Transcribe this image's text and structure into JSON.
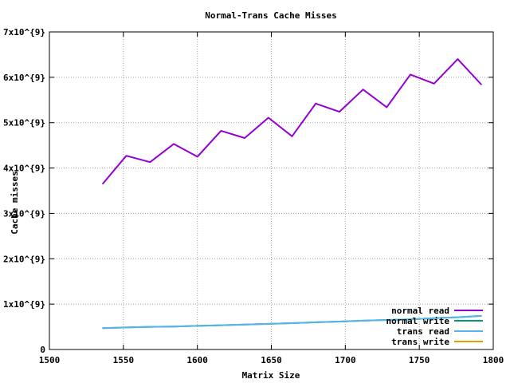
{
  "chart_data": {
    "type": "line",
    "title": "Normal-Trans Cache Misses",
    "xlabel": "Matrix Size",
    "ylabel": "Cache misses",
    "xlim": [
      1500,
      1800
    ],
    "ylim": [
      0,
      7000000000
    ],
    "x_ticks": [
      {
        "value": 1500,
        "label": "1500"
      },
      {
        "value": 1550,
        "label": "1550"
      },
      {
        "value": 1600,
        "label": "1600"
      },
      {
        "value": 1650,
        "label": "1650"
      },
      {
        "value": 1700,
        "label": "1700"
      },
      {
        "value": 1750,
        "label": "1750"
      },
      {
        "value": 1800,
        "label": "1800"
      }
    ],
    "y_ticks": [
      {
        "value": 0,
        "label": "0"
      },
      {
        "value": 1000000000,
        "label": "1x10^{9}"
      },
      {
        "value": 2000000000,
        "label": "2x10^{9}"
      },
      {
        "value": 3000000000,
        "label": "3x10^{9}"
      },
      {
        "value": 4000000000,
        "label": "4x10^{9}"
      },
      {
        "value": 5000000000,
        "label": "5x10^{9}"
      },
      {
        "value": 6000000000,
        "label": "6x10^{9}"
      },
      {
        "value": 7000000000,
        "label": "7x10^{9}"
      }
    ],
    "grid": true,
    "legend_position": "bottom-right",
    "series": [
      {
        "name": "normal read",
        "color": "#9400d3",
        "x": [
          1536,
          1552,
          1568,
          1584,
          1600,
          1616,
          1632,
          1648,
          1664,
          1680,
          1696,
          1712,
          1728,
          1744,
          1760,
          1776,
          1792
        ],
        "y": [
          3650000000,
          4270000000,
          4130000000,
          4530000000,
          4250000000,
          4820000000,
          4660000000,
          5110000000,
          4700000000,
          5420000000,
          5240000000,
          5730000000,
          5340000000,
          6060000000,
          5860000000,
          6400000000,
          5840000000
        ]
      },
      {
        "name": "normal write",
        "color": "#009e73",
        "x": [
          1536,
          1552,
          1568,
          1584,
          1600,
          1616,
          1632,
          1648,
          1664,
          1680,
          1696,
          1712,
          1728,
          1744,
          1760,
          1776,
          1792
        ],
        "y": [
          470000000,
          485000000,
          500000000,
          505000000,
          520000000,
          535000000,
          550000000,
          565000000,
          580000000,
          600000000,
          615000000,
          635000000,
          650000000,
          665000000,
          690000000,
          710000000,
          740000000
        ]
      },
      {
        "name": "trans read",
        "color": "#56b4e9",
        "x": [
          1536,
          1552,
          1568,
          1584,
          1600,
          1616,
          1632,
          1648,
          1664,
          1680,
          1696,
          1712,
          1728,
          1744,
          1760,
          1776,
          1792
        ],
        "y": [
          470000000,
          485000000,
          500000000,
          505000000,
          520000000,
          535000000,
          550000000,
          565000000,
          580000000,
          600000000,
          615000000,
          635000000,
          650000000,
          665000000,
          690000000,
          710000000,
          740000000
        ]
      },
      {
        "name": "trans write",
        "color": "#e69f00",
        "x": [],
        "y": []
      }
    ]
  }
}
